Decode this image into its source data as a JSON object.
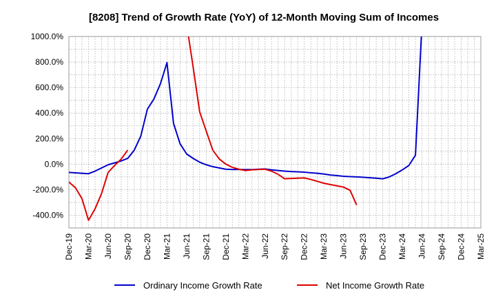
{
  "chart_data": {
    "type": "line",
    "title": "[8208]  Trend of Growth Rate (YoY) of 12-Month Moving Sum of Incomes",
    "xlabel": "",
    "ylabel": "",
    "ylim": [
      -500,
      1000
    ],
    "y_ticks": [
      1000,
      800,
      600,
      400,
      200,
      0,
      -200,
      -400
    ],
    "y_tick_labels": [
      "1000.0%",
      "800.0%",
      "600.0%",
      "400.0%",
      "200.0%",
      "0.0%",
      "-200.0%",
      "-400.0%"
    ],
    "x_range": [
      "2019-12",
      "2025-03"
    ],
    "x_ticks": [
      "2019-12",
      "2020-03",
      "2020-06",
      "2020-09",
      "2020-12",
      "2021-03",
      "2021-06",
      "2021-09",
      "2021-12",
      "2022-03",
      "2022-06",
      "2022-09",
      "2022-12",
      "2023-03",
      "2023-06",
      "2023-09",
      "2023-12",
      "2024-03",
      "2024-06",
      "2024-09",
      "2024-12",
      "2025-03"
    ],
    "x_tick_labels": [
      "Dec-19",
      "Mar-20",
      "Jun-20",
      "Sep-20",
      "Dec-20",
      "Mar-21",
      "Jun-21",
      "Sep-21",
      "Dec-21",
      "Mar-22",
      "Jun-22",
      "Sep-22",
      "Dec-22",
      "Mar-23",
      "Jun-23",
      "Sep-23",
      "Dec-23",
      "Mar-24",
      "Jun-24",
      "Sep-24",
      "Dec-24",
      "Mar-25"
    ],
    "grid": true,
    "legend_position": "bottom",
    "series": [
      {
        "name": "Ordinary Income Growth Rate",
        "color": "#0000cc",
        "points": [
          [
            "2019-12",
            -65
          ],
          [
            "2020-01",
            -68
          ],
          [
            "2020-02",
            -72
          ],
          [
            "2020-03",
            -75
          ],
          [
            "2020-04",
            -55
          ],
          [
            "2020-05",
            -30
          ],
          [
            "2020-06",
            -5
          ],
          [
            "2020-07",
            10
          ],
          [
            "2020-08",
            25
          ],
          [
            "2020-09",
            45
          ],
          [
            "2020-10",
            110
          ],
          [
            "2020-11",
            220
          ],
          [
            "2020-12",
            430
          ],
          [
            "2021-01",
            510
          ],
          [
            "2021-02",
            630
          ],
          [
            "2021-03",
            795
          ],
          [
            "2021-04",
            320
          ],
          [
            "2021-05",
            160
          ],
          [
            "2021-06",
            80
          ],
          [
            "2021-07",
            45
          ],
          [
            "2021-08",
            15
          ],
          [
            "2021-09",
            -5
          ],
          [
            "2021-10",
            -20
          ],
          [
            "2021-11",
            -30
          ],
          [
            "2021-12",
            -40
          ],
          [
            "2022-01",
            -42
          ],
          [
            "2022-02",
            -42
          ],
          [
            "2022-03",
            -43
          ],
          [
            "2022-04",
            -43
          ],
          [
            "2022-05",
            -40
          ],
          [
            "2022-06",
            -38
          ],
          [
            "2022-07",
            -45
          ],
          [
            "2022-08",
            -50
          ],
          [
            "2022-09",
            -55
          ],
          [
            "2022-10",
            -58
          ],
          [
            "2022-11",
            -60
          ],
          [
            "2022-12",
            -63
          ],
          [
            "2023-01",
            -68
          ],
          [
            "2023-02",
            -72
          ],
          [
            "2023-03",
            -78
          ],
          [
            "2023-04",
            -85
          ],
          [
            "2023-05",
            -90
          ],
          [
            "2023-06",
            -95
          ],
          [
            "2023-07",
            -98
          ],
          [
            "2023-08",
            -100
          ],
          [
            "2023-09",
            -103
          ],
          [
            "2023-10",
            -107
          ],
          [
            "2023-11",
            -110
          ],
          [
            "2023-12",
            -115
          ],
          [
            "2024-01",
            -100
          ],
          [
            "2024-02",
            -75
          ],
          [
            "2024-03",
            -45
          ],
          [
            "2024-04",
            -10
          ],
          [
            "2024-05",
            70
          ],
          [
            "2024-06",
            1100
          ]
        ]
      },
      {
        "name": "Net Income Growth Rate",
        "color": "#dd0000",
        "points": [
          [
            "2019-12",
            -140
          ],
          [
            "2020-01",
            -185
          ],
          [
            "2020-02",
            -270
          ],
          [
            "2020-03",
            -440
          ],
          [
            "2020-04",
            -350
          ],
          [
            "2020-05",
            -230
          ],
          [
            "2020-06",
            -65
          ],
          [
            "2020-07",
            -10
          ],
          [
            "2020-08",
            40
          ],
          [
            "2020-09",
            110
          ],
          [
            "2021-06",
            1100
          ],
          [
            "2021-07",
            760
          ],
          [
            "2021-08",
            410
          ],
          [
            "2021-09",
            260
          ],
          [
            "2021-10",
            110
          ],
          [
            "2021-11",
            40
          ],
          [
            "2021-12",
            0
          ],
          [
            "2022-01",
            -25
          ],
          [
            "2022-02",
            -40
          ],
          [
            "2022-03",
            -50
          ],
          [
            "2022-04",
            -45
          ],
          [
            "2022-05",
            -42
          ],
          [
            "2022-06",
            -40
          ],
          [
            "2022-07",
            -55
          ],
          [
            "2022-08",
            -80
          ],
          [
            "2022-09",
            -115
          ],
          [
            "2022-10",
            -112
          ],
          [
            "2022-11",
            -110
          ],
          [
            "2022-12",
            -108
          ],
          [
            "2023-01",
            -120
          ],
          [
            "2023-02",
            -135
          ],
          [
            "2023-03",
            -150
          ],
          [
            "2023-04",
            -160
          ],
          [
            "2023-05",
            -170
          ],
          [
            "2023-06",
            -180
          ],
          [
            "2023-07",
            -205
          ],
          [
            "2023-08",
            -320
          ]
        ]
      }
    ]
  }
}
